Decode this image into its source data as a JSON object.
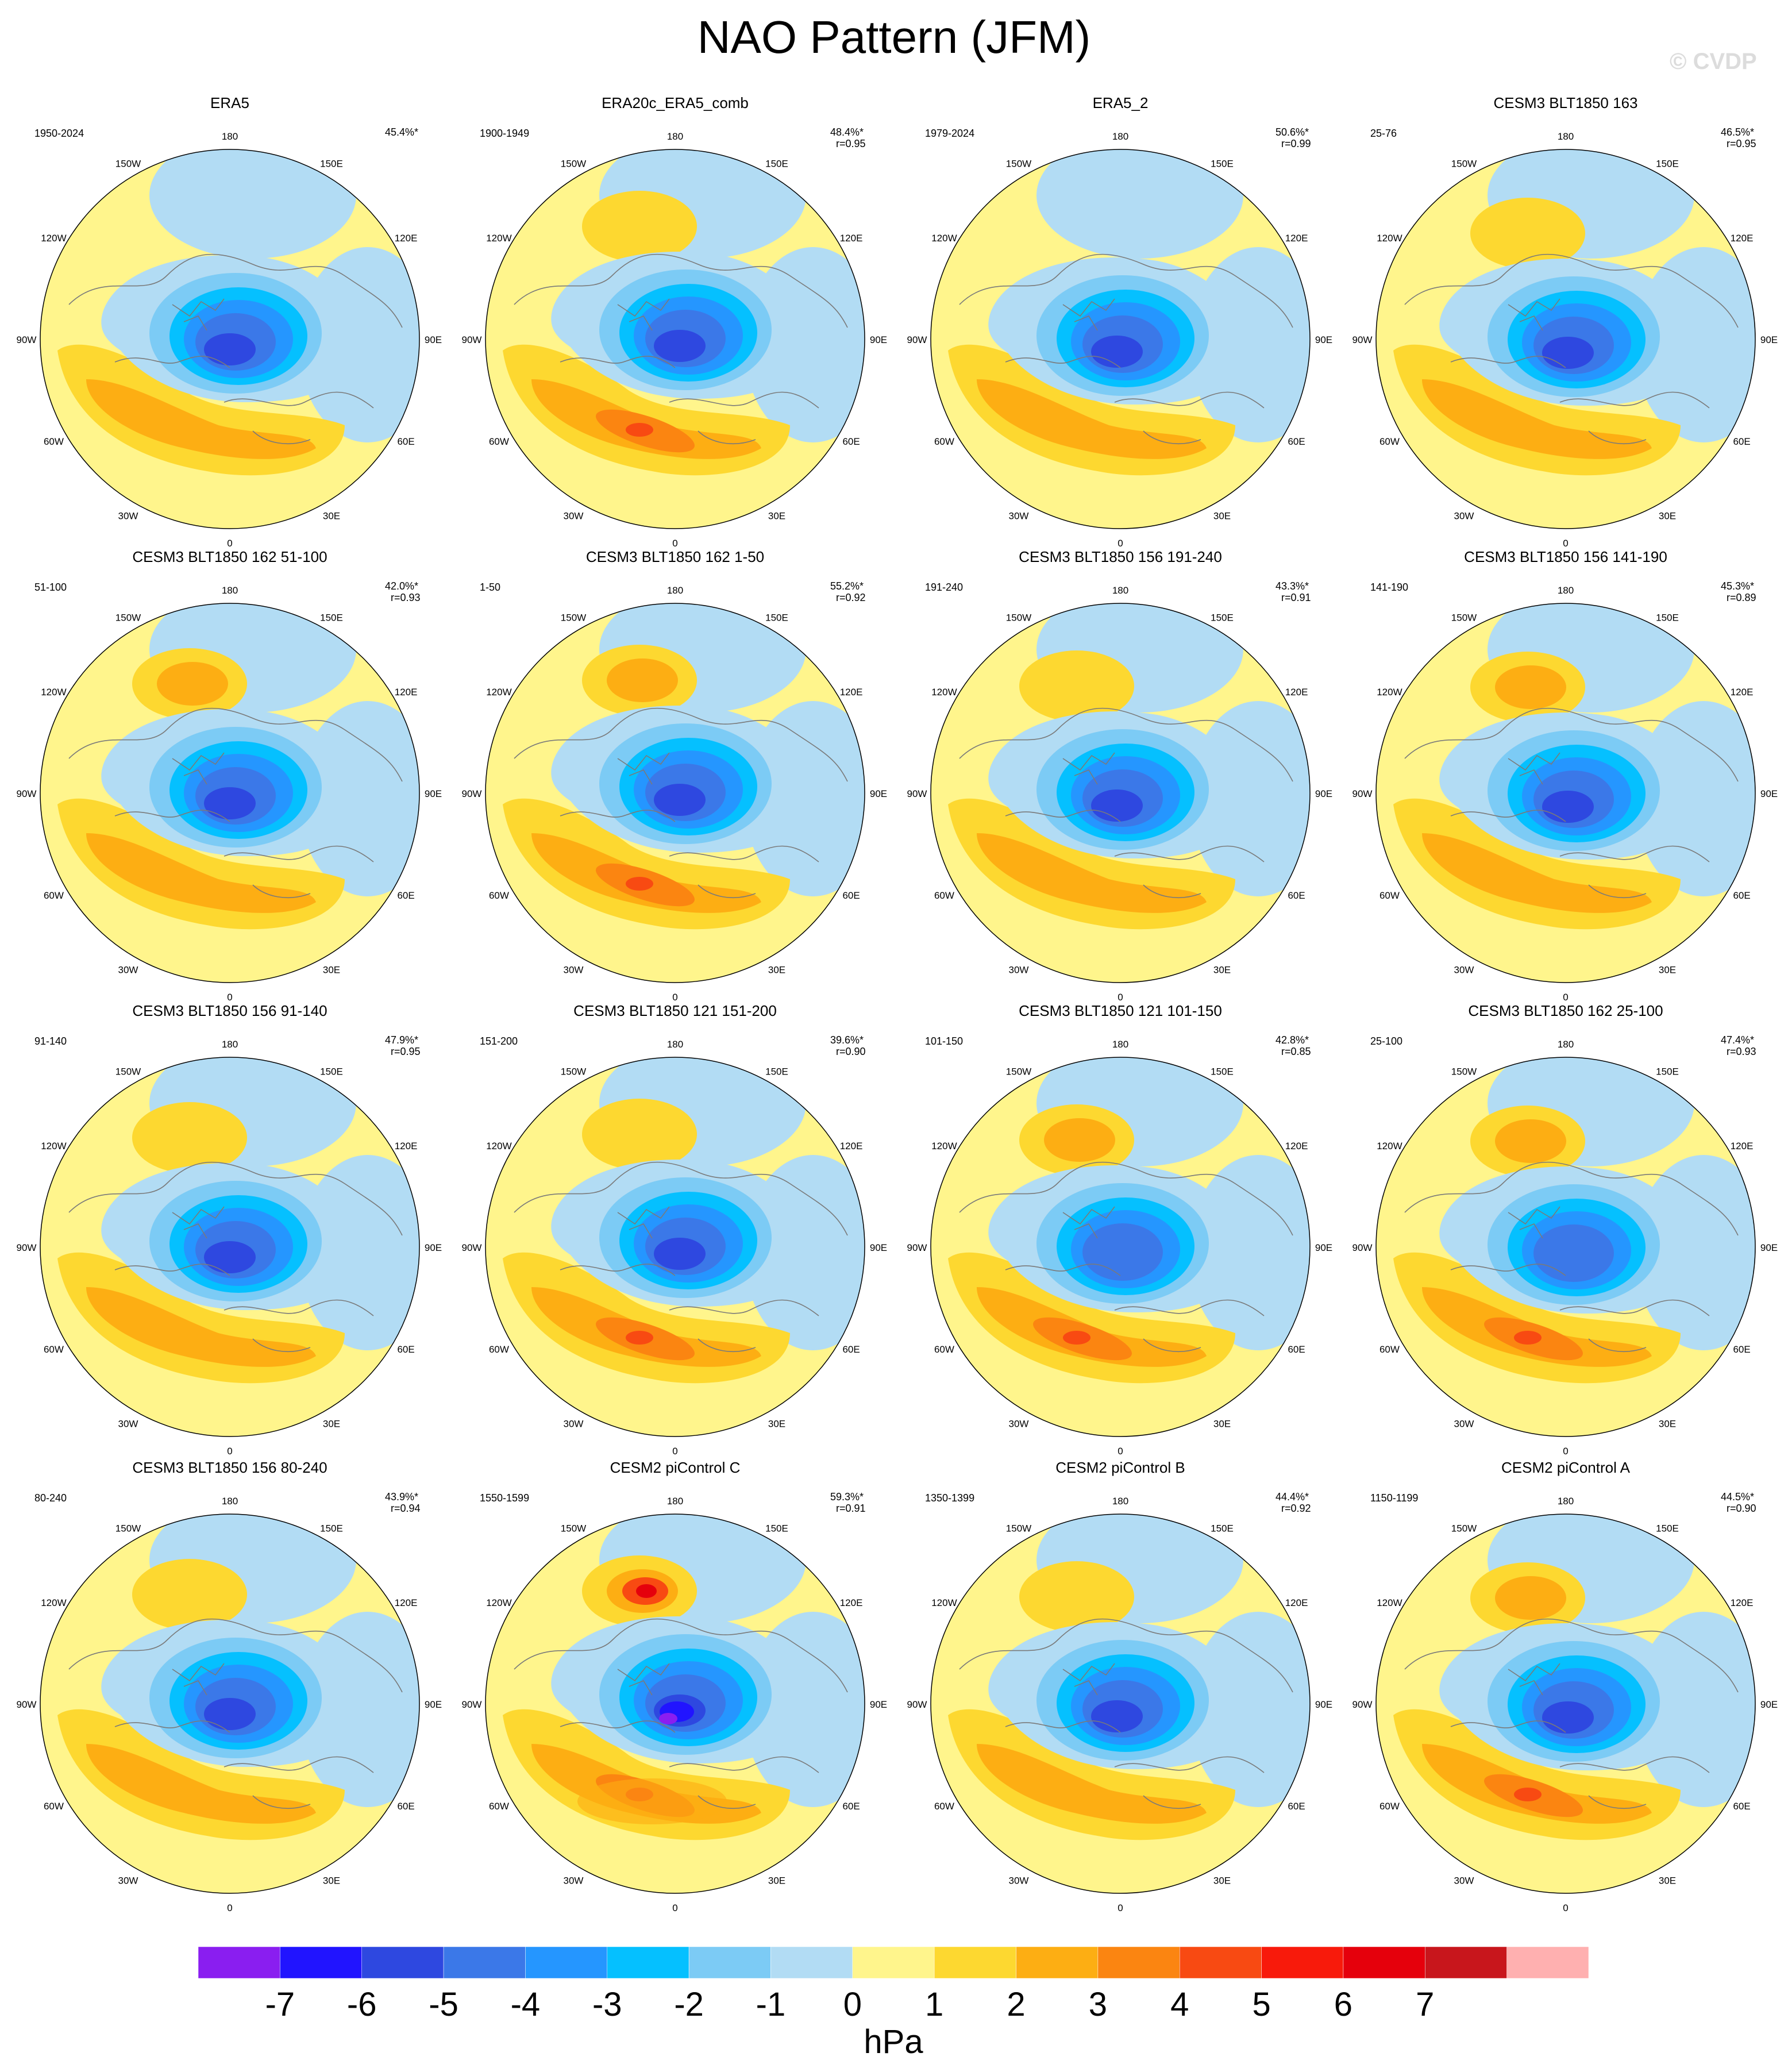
{
  "title": "NAO Pattern (JFM)",
  "watermark": "© CVDP",
  "longitude_labels": [
    "180",
    "150E",
    "120E",
    "90E",
    "60E",
    "30E",
    "0",
    "30W",
    "60W",
    "90W",
    "120W",
    "150W"
  ],
  "colors": {
    "neg7": "#8a1ef0",
    "neg6": "#2114ff",
    "neg5": "#2e48e0",
    "neg4": "#3b78e8",
    "neg3": "#2596ff",
    "neg2": "#05c0ff",
    "neg1": "#7ccbf5",
    "neg0": "#b2dcf4",
    "pos0": "#fff58c",
    "pos1": "#fdd830",
    "pos2": "#fdae13",
    "pos3": "#fb8511",
    "pos4": "#f84a12",
    "pos5": "#f81a0b",
    "pos6": "#e5000c",
    "pos7": "#c8161c",
    "pos8": "#ffb0b0",
    "coast": "#7a7a7a"
  },
  "panels": [
    {
      "name": "ERA5",
      "years": "1950-2024",
      "pct": "45.4%*",
      "r": ""
    },
    {
      "name": "ERA20c_ERA5_comb",
      "years": "1900-1949",
      "pct": "48.4%*",
      "r": "r=0.95"
    },
    {
      "name": "ERA5_2",
      "years": "1979-2024",
      "pct": "50.6%*",
      "r": "r=0.99"
    },
    {
      "name": "CESM3 BLT1850 163",
      "years": "25-76",
      "pct": "46.5%*",
      "r": "r=0.95"
    },
    {
      "name": "CESM3 BLT1850 162 51-100",
      "years": "51-100",
      "pct": "42.0%*",
      "r": "r=0.93"
    },
    {
      "name": "CESM3 BLT1850 162 1-50",
      "years": "1-50",
      "pct": "55.2%*",
      "r": "r=0.92"
    },
    {
      "name": "CESM3 BLT1850 156 191-240",
      "years": "191-240",
      "pct": "43.3%*",
      "r": "r=0.91"
    },
    {
      "name": "CESM3 BLT1850 156 141-190",
      "years": "141-190",
      "pct": "45.3%*",
      "r": "r=0.89"
    },
    {
      "name": "CESM3 BLT1850 156 91-140",
      "years": "91-140",
      "pct": "47.9%*",
      "r": "r=0.95"
    },
    {
      "name": "CESM3 BLT1850 121 151-200",
      "years": "151-200",
      "pct": "39.6%*",
      "r": "r=0.90"
    },
    {
      "name": "CESM3 BLT1850 121 101-150",
      "years": "101-150",
      "pct": "42.8%*",
      "r": "r=0.85"
    },
    {
      "name": "CESM3 BLT1850 162 25-100",
      "years": "25-100",
      "pct": "47.4%*",
      "r": "r=0.93"
    },
    {
      "name": "CESM3 BLT1850 156 80-240",
      "years": "80-240",
      "pct": "43.9%*",
      "r": "r=0.94"
    },
    {
      "name": "CESM2 piControl C",
      "years": "1550-1599",
      "pct": "59.3%*",
      "r": "r=0.91"
    },
    {
      "name": "CESM2 piControl B",
      "years": "1350-1399",
      "pct": "44.4%*",
      "r": "r=0.92"
    },
    {
      "name": "CESM2 piControl A",
      "years": "1150-1199",
      "pct": "44.5%*",
      "r": "r=0.90"
    }
  ],
  "legend": {
    "tick_labels": [
      "-7",
      "-6",
      "-5",
      "-4",
      "-3",
      "-2",
      "-1",
      "0",
      "1",
      "2",
      "3",
      "4",
      "5",
      "6",
      "7"
    ],
    "unit": "hPa",
    "colors": [
      "#8a1ef0",
      "#2114ff",
      "#2e48e0",
      "#3b78e8",
      "#2596ff",
      "#05c0ff",
      "#7ccbf5",
      "#b2dcf4",
      "#fff58c",
      "#fdd830",
      "#fdae13",
      "#fb8511",
      "#f84a12",
      "#f81a0b",
      "#e5000c",
      "#c8161c",
      "#ffb0b0"
    ]
  }
}
